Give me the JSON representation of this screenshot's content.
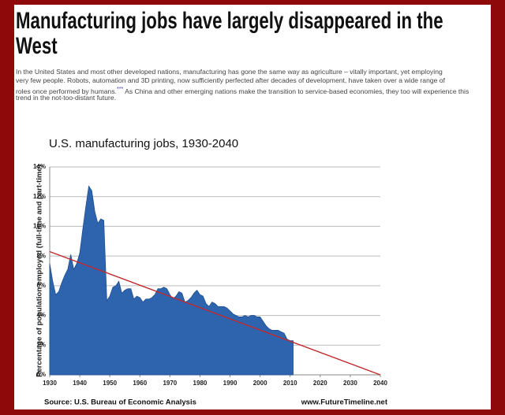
{
  "article": {
    "title_lines": [
      "Manufacturing jobs have largely disappeared in the",
      "West"
    ],
    "paragraph_lines": [
      "In the United States and most other developed nations, manufacturing has gone the same way as agriculture – vitally important, yet employing",
      "very few people. Robots, automation and 3D printing, now sufficiently perfected after decades of development, have taken over a wide range of",
      "roles once performed by humans.",
      "trend in the not-too-distant future."
    ],
    "footnote_marker": "***",
    "paragraph_line3_rest": " As China and other emerging nations make the transition to service-based economies, they too will experience this"
  },
  "chart_data": {
    "type": "area",
    "title": "U.S. manufacturing jobs, 1930-2040",
    "y_label": "Percentage of population employed (full-time and part-time)",
    "source": "Source: U.S. Bureau of Economic Analysis",
    "credit": "www.FutureTimeline.net",
    "xlim": [
      1930,
      2040
    ],
    "xticks": [
      1930,
      1940,
      1950,
      1960,
      1970,
      1980,
      1990,
      2000,
      2010,
      2020,
      2030,
      2040
    ],
    "ylim": [
      0,
      14
    ],
    "yticks": [
      {
        "value": 0,
        "label": "0%"
      },
      {
        "value": 2,
        "label": "2%"
      },
      {
        "value": 4,
        "label": "4%"
      },
      {
        "value": 6,
        "label": "6%"
      },
      {
        "value": 8,
        "label": "8%"
      },
      {
        "value": 10,
        "label": "10%"
      },
      {
        "value": 12,
        "label": "12%"
      },
      {
        "value": 14,
        "label": "14%"
      }
    ],
    "grid": true,
    "series": [
      {
        "kind": "area",
        "color": "#2e64ad",
        "x": [
          1930,
          1931,
          1932,
          1933,
          1934,
          1935,
          1936,
          1937,
          1938,
          1939,
          1940,
          1941,
          1942,
          1943,
          1944,
          1945,
          1946,
          1947,
          1948,
          1949,
          1950,
          1951,
          1952,
          1953,
          1954,
          1955,
          1956,
          1957,
          1958,
          1959,
          1960,
          1961,
          1962,
          1963,
          1964,
          1965,
          1966,
          1967,
          1968,
          1969,
          1970,
          1971,
          1972,
          1973,
          1974,
          1975,
          1976,
          1977,
          1978,
          1979,
          1980,
          1981,
          1982,
          1983,
          1984,
          1985,
          1986,
          1987,
          1988,
          1989,
          1990,
          1991,
          1992,
          1993,
          1994,
          1995,
          1996,
          1997,
          1998,
          1999,
          2000,
          2001,
          2002,
          2003,
          2004,
          2005,
          2006,
          2007,
          2008,
          2009,
          2010,
          2011
        ],
        "values": [
          7.5,
          6.3,
          5.4,
          5.6,
          6.2,
          6.7,
          7.1,
          8.1,
          7.1,
          7.5,
          8.2,
          9.8,
          11.3,
          12.7,
          12.4,
          11.0,
          10.2,
          10.5,
          10.4,
          5.0,
          5.3,
          5.9,
          6.0,
          6.3,
          5.5,
          5.7,
          5.8,
          5.8,
          5.1,
          5.3,
          5.2,
          4.9,
          5.1,
          5.1,
          5.2,
          5.4,
          5.8,
          5.8,
          5.9,
          5.8,
          5.4,
          5.1,
          5.3,
          5.6,
          5.5,
          4.9,
          5.0,
          5.2,
          5.5,
          5.7,
          5.4,
          5.3,
          4.8,
          4.6,
          4.9,
          4.8,
          4.6,
          4.6,
          4.6,
          4.5,
          4.3,
          4.1,
          4.0,
          3.9,
          3.9,
          4.0,
          3.9,
          4.0,
          4.0,
          3.9,
          3.9,
          3.6,
          3.3,
          3.1,
          3.0,
          3.0,
          3.0,
          2.9,
          2.8,
          2.4,
          2.3,
          2.3
        ]
      },
      {
        "kind": "line",
        "color": "#c0282d",
        "x": [
          1930,
          2040
        ],
        "values": [
          8.3,
          0
        ]
      }
    ]
  }
}
